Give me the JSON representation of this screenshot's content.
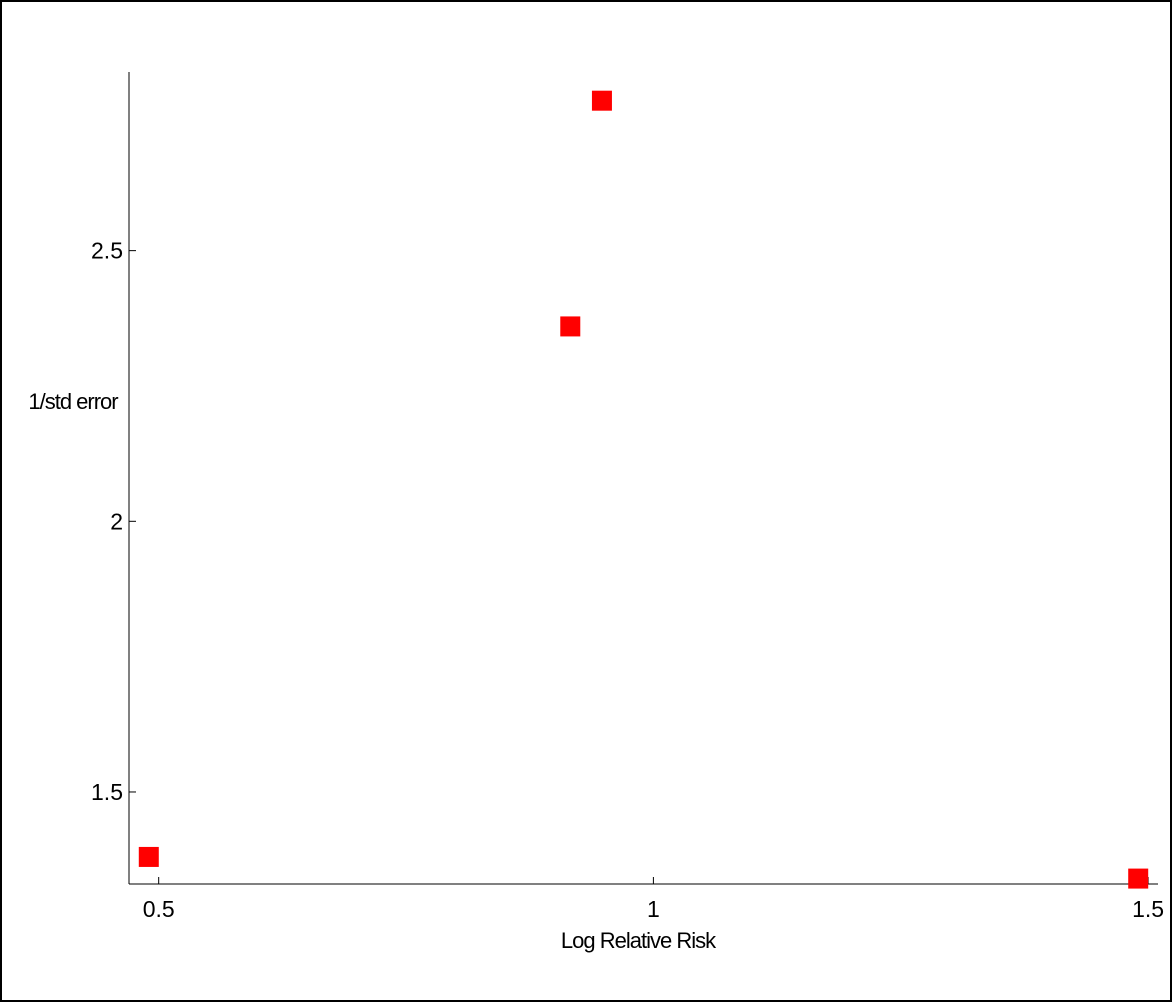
{
  "chart_data": {
    "type": "scatter",
    "title": "",
    "xlabel": "Log Relative Risk",
    "ylabel": "1/std error",
    "xlim": [
      0.47,
      1.51
    ],
    "ylim": [
      1.33,
      2.83
    ],
    "xticks": [
      {
        "value": 0.5,
        "label": "0.5"
      },
      {
        "value": 1,
        "label": "1"
      },
      {
        "value": 1.5,
        "label": "1.5"
      }
    ],
    "yticks": [
      {
        "value": 1.5,
        "label": "1.5"
      },
      {
        "value": 2,
        "label": "2"
      },
      {
        "value": 2.5,
        "label": "2.5"
      }
    ],
    "grid": false,
    "legend": "none",
    "series": [
      {
        "color": "#ff0000",
        "marker": "square",
        "points": [
          {
            "x": 0.49,
            "y": 1.38
          },
          {
            "x": 0.916,
            "y": 2.36
          },
          {
            "x": 0.948,
            "y": 2.777
          },
          {
            "x": 1.49,
            "y": 1.34
          }
        ]
      }
    ]
  }
}
